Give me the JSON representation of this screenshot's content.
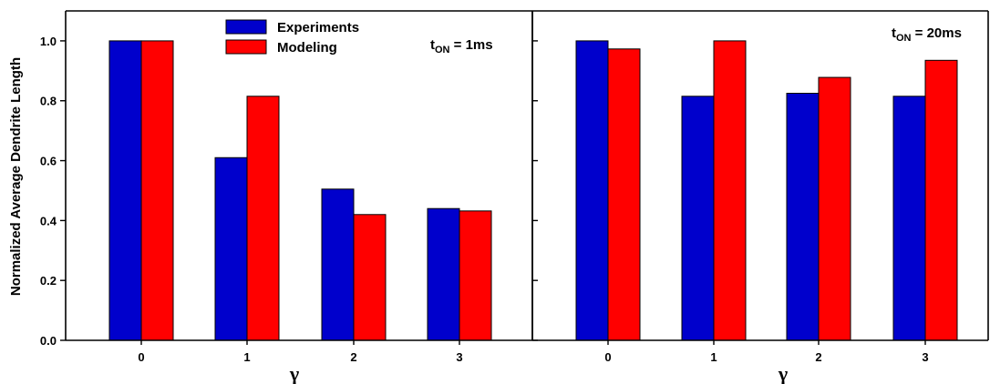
{
  "chart_data": [
    {
      "type": "bar",
      "categories": [
        "0",
        "1",
        "2",
        "3"
      ],
      "series": [
        {
          "name": "Experiments",
          "values": [
            1.0,
            0.61,
            0.505,
            0.44
          ]
        },
        {
          "name": "Modeling",
          "values": [
            1.0,
            0.815,
            0.42,
            0.432
          ]
        }
      ],
      "annotation": {
        "main": "t",
        "sub": "ON",
        "rest": " = 1ms"
      },
      "xlabel": "γ",
      "ylabel": "Normalized Average Dendrite Length",
      "ylim": [
        0,
        1.1
      ],
      "yticks": [
        0.0,
        0.2,
        0.4,
        0.6,
        0.8,
        1.0
      ],
      "ytick_labels": [
        "0.0",
        "0.2",
        "0.4",
        "0.6",
        "0.8",
        "1.0"
      ],
      "legend": "top-center",
      "grid": false
    },
    {
      "type": "bar",
      "categories": [
        "0",
        "1",
        "2",
        "3"
      ],
      "series": [
        {
          "name": "Experiments",
          "values": [
            1.0,
            0.815,
            0.825,
            0.815
          ]
        },
        {
          "name": "Modeling",
          "values": [
            0.973,
            1.0,
            0.878,
            0.935
          ]
        }
      ],
      "annotation": {
        "main": "t",
        "sub": "ON",
        "rest": " = 20ms"
      },
      "xlabel": "γ",
      "ylim": [
        0,
        1.1
      ],
      "yticks": [
        0.0,
        0.2,
        0.4,
        0.6,
        0.8,
        1.0
      ],
      "grid": false
    }
  ],
  "colors": {
    "Experiments": "#0000cc",
    "Modeling": "#ff0000"
  }
}
